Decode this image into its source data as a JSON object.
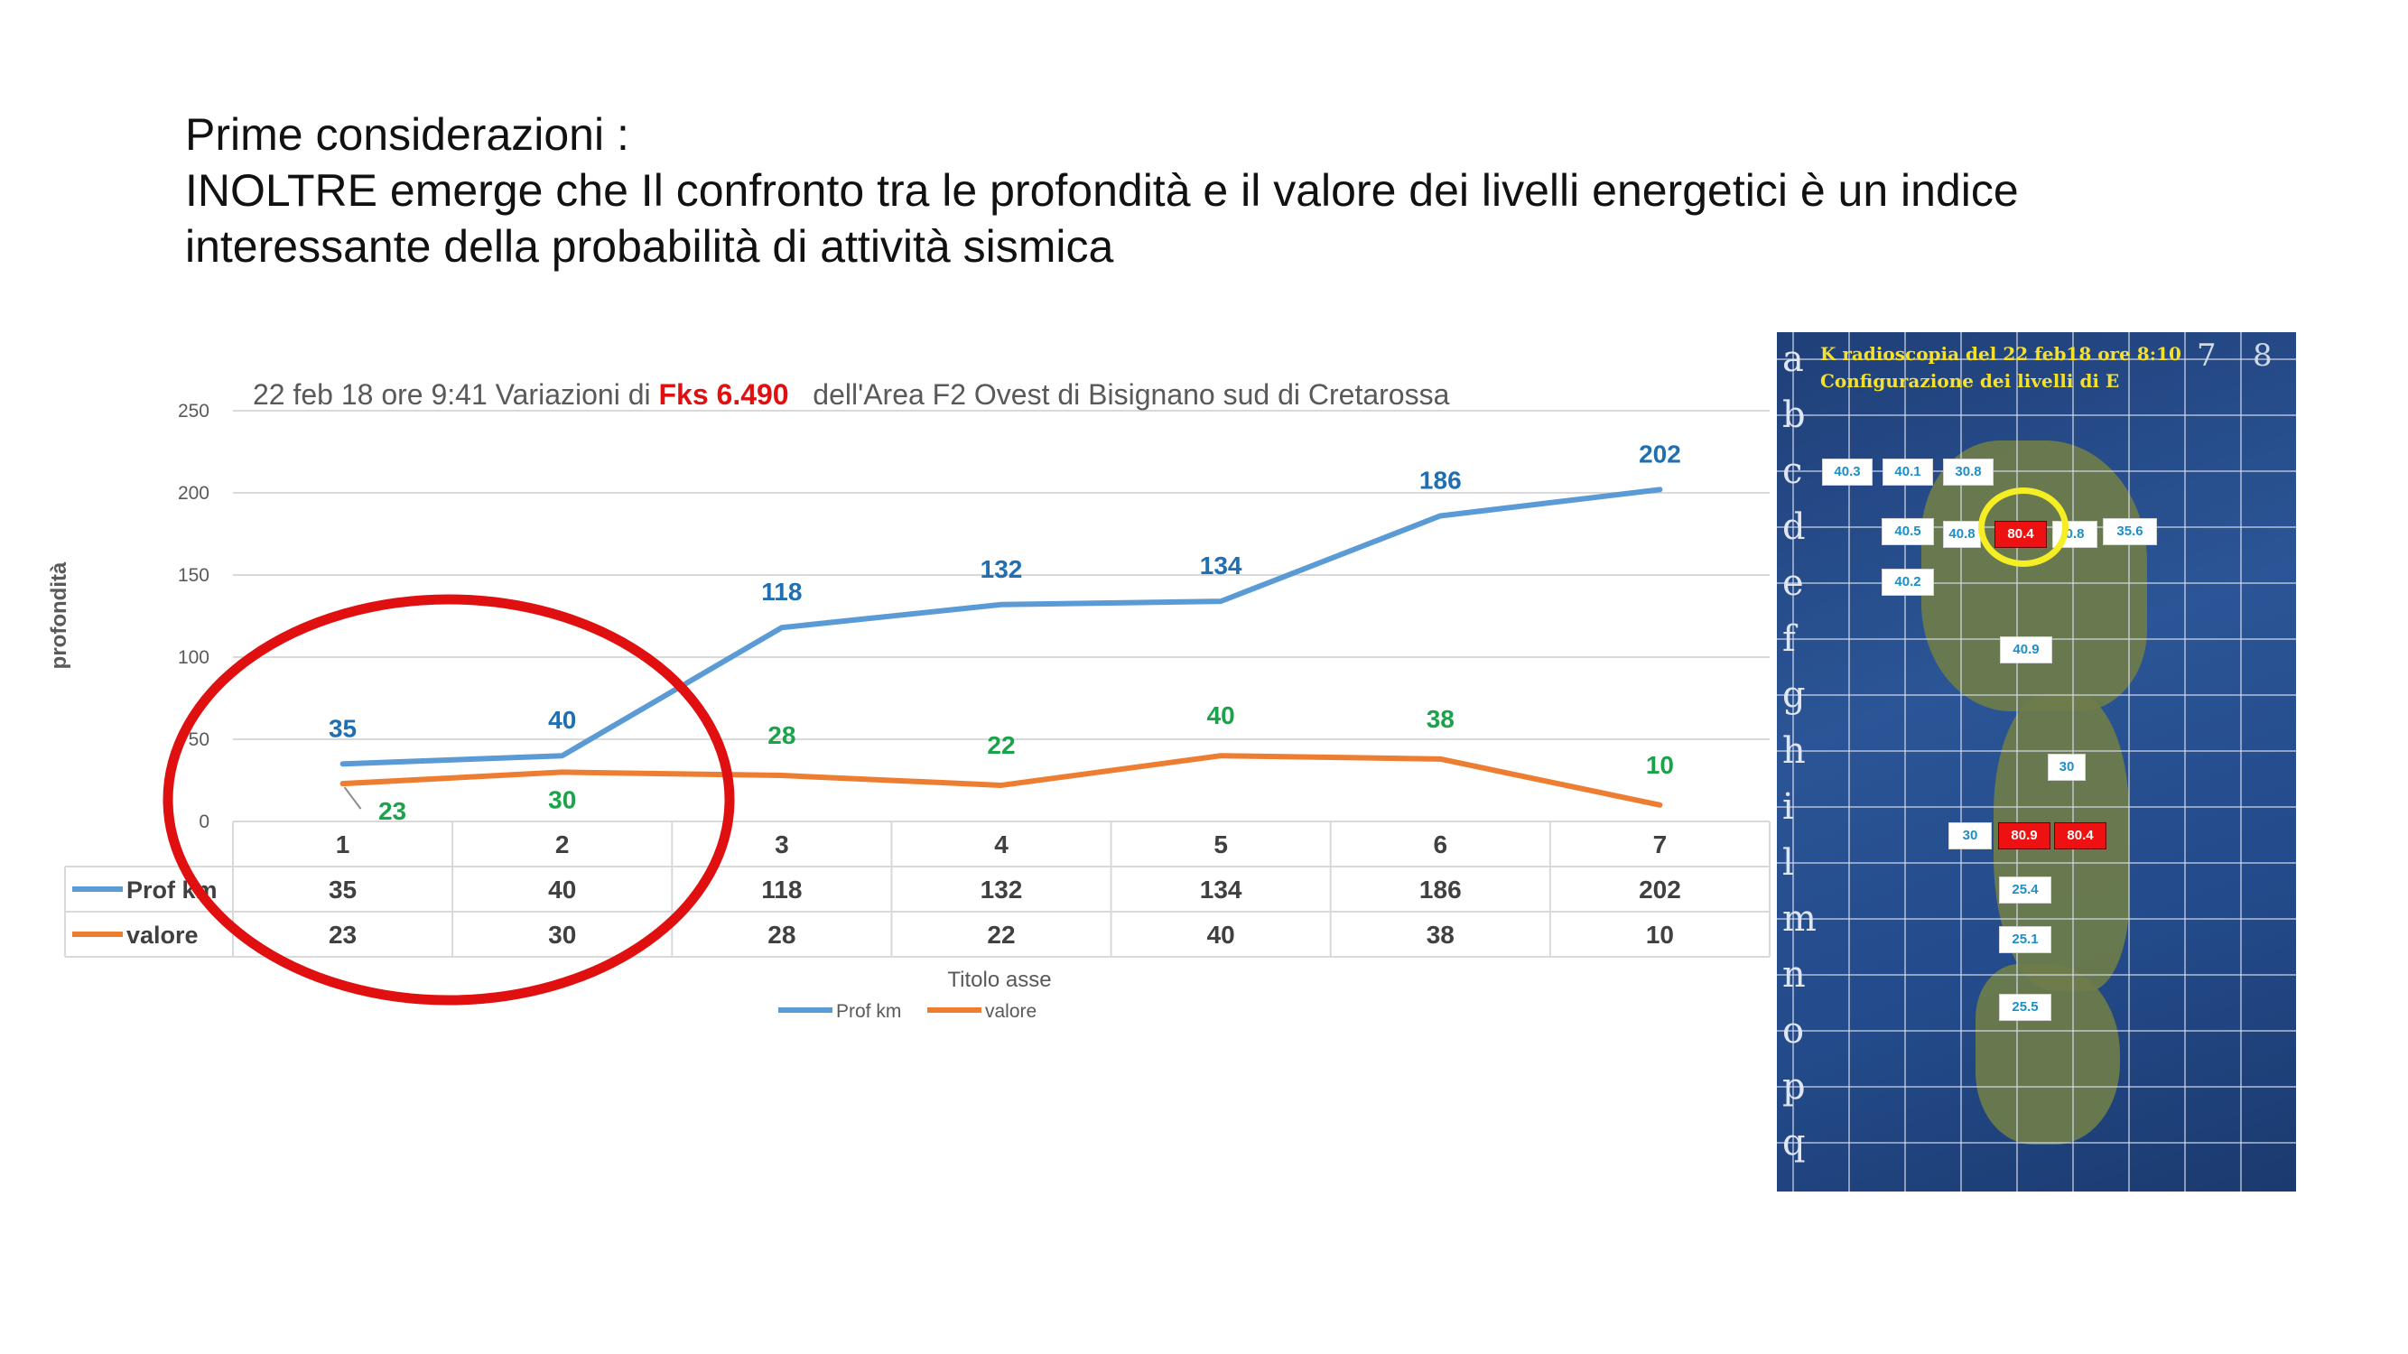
{
  "heading": {
    "line1": "Prime considerazioni :",
    "line2": "INOLTRE emerge che Il confronto tra le profondità e il valore dei livelli energetici   è un indice",
    "line3": "interessante della probabilità di attività sismica"
  },
  "chart_data": {
    "type": "line",
    "title_part1": "22 feb 18 ore 9:41 Variazioni di ",
    "title_highlight": "Fks 6.490",
    "title_part2": "   dell'Area F2 Ovest di Bisignano sud di Cretarossa",
    "categories": [
      "1",
      "2",
      "3",
      "4",
      "5",
      "6",
      "7"
    ],
    "series": [
      {
        "name": "Prof km",
        "values": [
          35,
          40,
          118,
          132,
          134,
          186,
          202
        ],
        "color": "#5b9bd5",
        "label_color": "#1f6fb2"
      },
      {
        "name": "valore",
        "values": [
          23,
          30,
          28,
          22,
          40,
          38,
          10
        ],
        "color": "#ed7d31",
        "label_color": "#1aa34a"
      }
    ],
    "ylabel": "profondità",
    "xlabel": "Titolo asse",
    "ylim": [
      0,
      250
    ],
    "yticks": [
      0,
      50,
      100,
      150,
      200,
      250
    ],
    "grid": true,
    "legend_position": "bottom",
    "annotation": "red ellipse around categories 1-2",
    "highlight_color": "#e01010"
  },
  "map": {
    "caption1": "K radioscopia del 22 feb18 ore 8:10",
    "caption2": "Configurazione dei livelli  di E",
    "row_letters": [
      "a",
      "b",
      "c",
      "d",
      "e",
      "f",
      "g",
      "h",
      "i",
      "l",
      "m",
      "n",
      "o",
      "p",
      "q"
    ],
    "col_numbers": [
      "7",
      "8"
    ],
    "values": [
      {
        "label": "40.3",
        "hot": false
      },
      {
        "label": "40.1",
        "hot": false
      },
      {
        "label": "30.8",
        "hot": false
      },
      {
        "label": "40.5",
        "hot": false
      },
      {
        "label": "40.8",
        "hot": false
      },
      {
        "label": "80.4",
        "hot": true
      },
      {
        "label": "0.8",
        "hot": false
      },
      {
        "label": "35.6",
        "hot": false
      },
      {
        "label": "40.2",
        "hot": false
      },
      {
        "label": "40.9",
        "hot": false
      },
      {
        "label": "30",
        "hot": false
      },
      {
        "label": "30",
        "hot": false
      },
      {
        "label": "80.9",
        "hot": true
      },
      {
        "label": "80.4",
        "hot": true
      },
      {
        "label": "25.4",
        "hot": false
      },
      {
        "label": "25.1",
        "hot": false
      },
      {
        "label": "25.5",
        "hot": false
      }
    ]
  }
}
